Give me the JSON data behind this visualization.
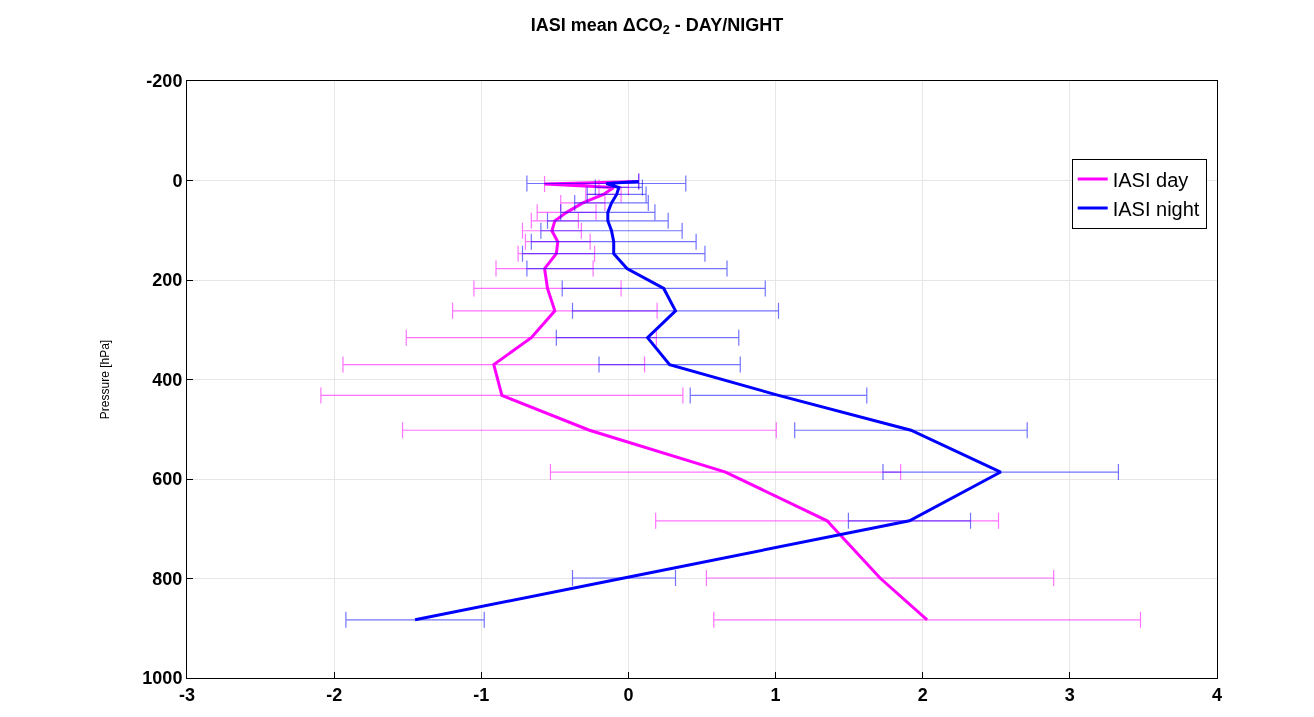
{
  "chart_data": {
    "type": "line",
    "title": "IASI mean ΔCO$_{2}$ - DAY/NIGHT",
    "ylabel": "Pressure [hPa]",
    "xlim": [
      -3,
      4
    ],
    "xticks": [
      -3,
      -2,
      -1,
      0,
      1,
      2,
      3,
      4
    ],
    "ylim": [
      1000,
      -200
    ],
    "yticks": [
      -200,
      0,
      200,
      400,
      600,
      800,
      1000
    ],
    "grid": true,
    "legend": "top right",
    "marker": "none",
    "line_style": "solid",
    "series": [
      {
        "name": "IASI day",
        "color": "#ff00ff",
        "x": [
          0.07,
          -0.57,
          -0.1,
          -0.17,
          -0.31,
          -0.42,
          -0.5,
          -0.52,
          -0.48,
          -0.49,
          -0.57,
          -0.55,
          -0.5,
          -0.66,
          -0.915,
          -0.86,
          -0.265,
          0.66,
          1.35,
          1.71,
          2.03
        ],
        "values": [
          2,
          7,
          14,
          28,
          45,
          64,
          81,
          101,
          123,
          147,
          177,
          217,
          262,
          316,
          370,
          432,
          502,
          586,
          684,
          799,
          883
        ],
        "xerrors": [
          null,
          null,
          0.1,
          0.12,
          0.15,
          0.2,
          0.16,
          0.2,
          0.22,
          0.26,
          0.33,
          0.5,
          0.695,
          0.85,
          1.025,
          1.23,
          1.27,
          1.19,
          1.165,
          1.18,
          1.45
        ]
      },
      {
        "name": "IASI night",
        "color": "#0000ff",
        "x": [
          0.07,
          -0.15,
          -0.065,
          -0.08,
          -0.115,
          -0.14,
          -0.14,
          -0.115,
          -0.1,
          -0.1,
          -0.01,
          0.24,
          0.32,
          0.13,
          0.28,
          1.02,
          1.92,
          2.53,
          1.91,
          -0.03,
          -1.45
        ],
        "values": [
          2,
          6,
          14,
          28,
          45,
          64,
          81,
          101,
          123,
          147,
          177,
          217,
          262,
          316,
          370,
          432,
          502,
          586,
          684,
          799,
          883
        ],
        "xerrors": [
          null,
          0.54,
          0.16,
          0.2,
          0.25,
          0.32,
          0.41,
          0.48,
          0.56,
          0.62,
          0.68,
          0.69,
          0.7,
          0.62,
          0.48,
          0.6,
          0.79,
          0.8,
          0.415,
          0.35,
          0.47
        ]
      }
    ]
  }
}
